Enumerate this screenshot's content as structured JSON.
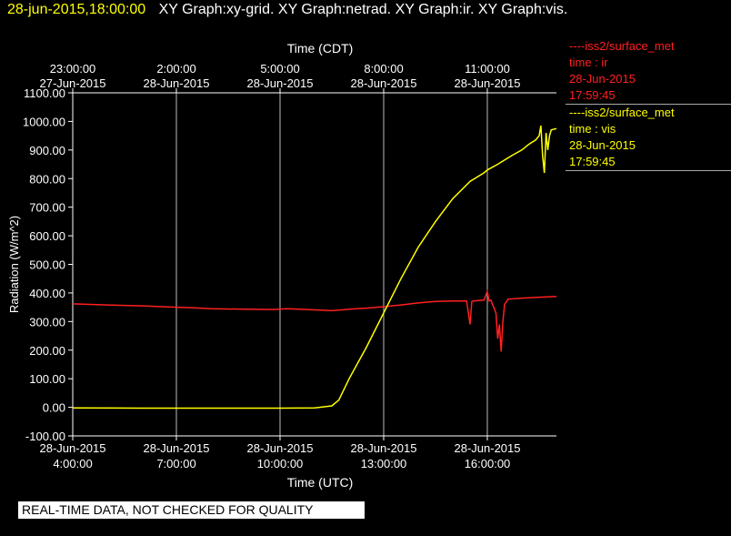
{
  "header": {
    "datetime": "28-jun-2015,18:00:00",
    "graphs": "XY Graph:xy-grid.  XY Graph:netrad.  XY Graph:ir.  XY Graph:vis."
  },
  "legend": [
    {
      "series": "----iss2/surface_met",
      "line2": "time : ir",
      "date": "28-Jun-2015",
      "time": "17:59:45",
      "color": "#ff2020"
    },
    {
      "series": "----iss2/surface_met",
      "line2": "time : vis",
      "date": "28-Jun-2015",
      "time": "17:59:45",
      "color": "#ffff00"
    }
  ],
  "banner": "REAL-TIME DATA, NOT CHECKED FOR QUALITY",
  "chart_data": {
    "type": "line",
    "title": "",
    "xlabel": "Time (UTC)",
    "x2label": "Time (CDT)",
    "ylabel": "Radiation (W/m^2)",
    "ylim": [
      -100,
      1100
    ],
    "xlim": [
      4.0,
      18.0
    ],
    "yticks": [
      "-100.00",
      "0.00",
      "100.00",
      "200.00",
      "300.00",
      "400.00",
      "500.00",
      "600.00",
      "700.00",
      "800.00",
      "900.00",
      "1000.00",
      "1100.00"
    ],
    "bottom_ticks": [
      {
        "date": "28-Jun-2015",
        "time": "4:00:00",
        "x": 4
      },
      {
        "date": "28-Jun-2015",
        "time": "7:00:00",
        "x": 7
      },
      {
        "date": "28-Jun-2015",
        "time": "10:00:00",
        "x": 10
      },
      {
        "date": "28-Jun-2015",
        "time": "13:00:00",
        "x": 13
      },
      {
        "date": "28-Jun-2015",
        "time": "16:00:00",
        "x": 16
      }
    ],
    "top_ticks": [
      {
        "time": "23:00:00",
        "date": "27-Jun-2015",
        "x": 4
      },
      {
        "time": "2:00:00",
        "date": "28-Jun-2015",
        "x": 7
      },
      {
        "time": "5:00:00",
        "date": "28-Jun-2015",
        "x": 10
      },
      {
        "time": "8:00:00",
        "date": "28-Jun-2015",
        "x": 13
      },
      {
        "time": "11:00:00",
        "date": "28-Jun-2015",
        "x": 16
      }
    ],
    "grid": true,
    "series": [
      {
        "name": "iss2/surface_met time : ir",
        "color": "#ff2020",
        "x": [
          4.0,
          5.0,
          6.0,
          7.0,
          7.5,
          8.0,
          9.0,
          9.8,
          10.2,
          11.0,
          11.5,
          12.0,
          12.5,
          13.0,
          13.5,
          14.0,
          14.5,
          15.0,
          15.4,
          15.5,
          15.55,
          15.6,
          15.9,
          16.0,
          16.05,
          16.1,
          16.25,
          16.3,
          16.35,
          16.4,
          16.45,
          16.5,
          16.6,
          17.0,
          17.5,
          18.0
        ],
        "values": [
          362,
          358,
          355,
          350,
          348,
          345,
          343,
          342,
          345,
          341,
          338,
          343,
          347,
          352,
          358,
          365,
          370,
          372,
          372,
          290,
          370,
          372,
          375,
          405,
          372,
          375,
          330,
          240,
          290,
          195,
          300,
          360,
          378,
          382,
          385,
          388
        ]
      },
      {
        "name": "iss2/surface_met time : vis",
        "color": "#ffff00",
        "x": [
          4.0,
          6.0,
          8.0,
          10.0,
          11.0,
          11.5,
          11.7,
          12.0,
          12.5,
          13.0,
          13.5,
          14.0,
          14.5,
          15.0,
          15.5,
          15.9,
          16.0,
          16.3,
          16.7,
          17.0,
          17.2,
          17.4,
          17.5,
          17.55,
          17.6,
          17.65,
          17.7,
          17.75,
          17.8,
          17.85,
          18.0
        ],
        "values": [
          -2,
          -3,
          -3,
          -3,
          -2,
          5,
          25,
          100,
          210,
          330,
          450,
          560,
          650,
          730,
          790,
          820,
          830,
          850,
          880,
          900,
          920,
          935,
          950,
          985,
          880,
          820,
          960,
          900,
          950,
          970,
          975
        ]
      }
    ]
  }
}
